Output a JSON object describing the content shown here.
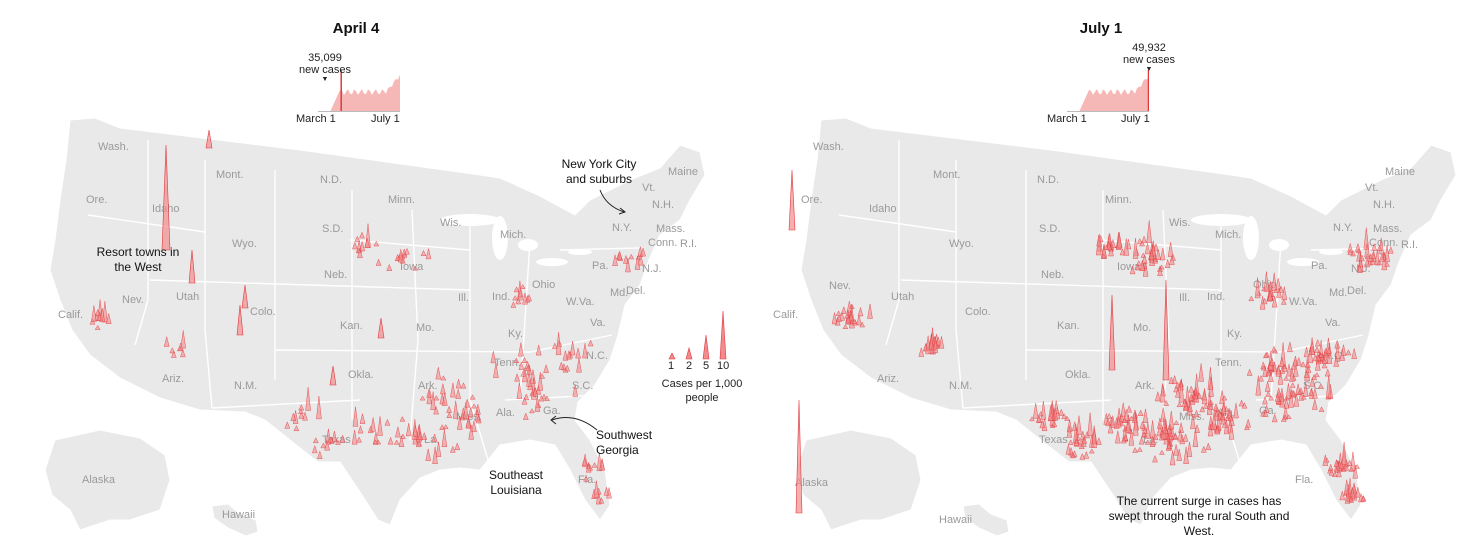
{
  "panels": [
    {
      "title": "April 4",
      "peak_value": "35,099",
      "peak_unit": "new cases",
      "spark_start": "March 1",
      "spark_end": "July 1",
      "marker_fraction": 0.28
    },
    {
      "title": "July 1",
      "peak_value": "49,932",
      "peak_unit": "new cases",
      "spark_start": "March 1",
      "spark_end": "July 1",
      "marker_fraction": 1.0
    }
  ],
  "states": {
    "wash": "Wash.",
    "ore": "Ore.",
    "idaho": "Idaho",
    "mont": "Mont.",
    "nd": "N.D.",
    "minn": "Minn.",
    "sd": "S.D.",
    "wyo": "Wyo.",
    "neb": "Neb.",
    "iowa": "Iowa",
    "wis": "Wis.",
    "mich": "Mich.",
    "nev": "Nev.",
    "utah": "Utah",
    "colo": "Colo.",
    "kan": "Kan.",
    "mo": "Mo.",
    "ill": "Ill.",
    "ind": "Ind.",
    "ohio": "Ohio",
    "calif": "Calif.",
    "ariz": "Ariz.",
    "nm": "N.M.",
    "okla": "Okla.",
    "ark": "Ark.",
    "tenn": "Tenn.",
    "ky": "Ky.",
    "wva": "W.Va.",
    "va": "Va.",
    "nc": "N.C.",
    "sc": "S.C.",
    "ga": "Ga.",
    "ala": "Ala.",
    "miss": "Miss.",
    "la": "La.",
    "texas": "Texas",
    "fla": "Fla.",
    "pa": "Pa.",
    "ny": "N.Y.",
    "md": "Md.",
    "del": "Del.",
    "nj": "N.J.",
    "conn": "Conn.",
    "ri": "R.I.",
    "mass": "Mass.",
    "vt": "Vt.",
    "nh": "N.H.",
    "maine": "Maine",
    "alaska": "Alaska",
    "hawaii": "Hawaii"
  },
  "annotations": {
    "nyc": "New York City and suburbs",
    "resort": "Resort towns in the West",
    "sw_georgia": "Southwest Georgia",
    "se_louisiana": "Southeast Louisiana",
    "surge": "The current surge in cases has swept through the rural South and West."
  },
  "legend": {
    "values": [
      "1",
      "2",
      "5",
      "10"
    ],
    "caption": "Cases per 1,000 people"
  },
  "colors": {
    "land": "#e9e9e9",
    "border": "#ffffff",
    "spike_fill": "#f28b8b",
    "spike_stroke": "#e0393e",
    "spark_fill": "#f6b8b6",
    "spark_line": "#e0393e"
  }
}
